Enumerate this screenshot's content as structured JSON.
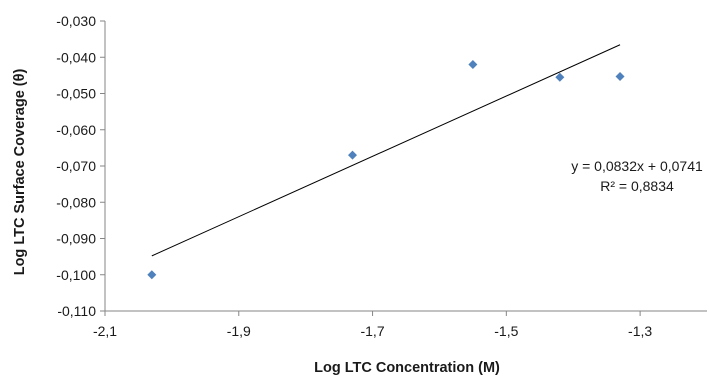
{
  "chart_data": {
    "type": "scatter",
    "title": "",
    "xlabel": "Log LTC Concentration (M)",
    "ylabel": "Log LTC Surface Coverage (θ)",
    "xlim": [
      -2.1,
      -1.2
    ],
    "ylim": [
      -0.11,
      -0.03
    ],
    "x_ticks": [
      -2.1,
      -1.9,
      -1.7,
      -1.5,
      -1.3
    ],
    "x_tick_labels": [
      "-2,1",
      "-1,9",
      "-1,7",
      "-1,5",
      "-1,3"
    ],
    "y_ticks": [
      -0.03,
      -0.04,
      -0.05,
      -0.06,
      -0.07,
      -0.08,
      -0.09,
      -0.1,
      -0.11
    ],
    "y_tick_labels": [
      "-0,030",
      "-0,040",
      "-0,050",
      "-0,060",
      "-0,070",
      "-0,080",
      "-0,090",
      "-0,100",
      "-0,110"
    ],
    "grid": false,
    "series": [
      {
        "marker": "diamond",
        "color": "#4f81bd",
        "points": [
          {
            "x": -2.03,
            "y": -0.1
          },
          {
            "x": -1.73,
            "y": -0.067
          },
          {
            "x": -1.55,
            "y": -0.042
          },
          {
            "x": -1.42,
            "y": -0.0455
          },
          {
            "x": -1.33,
            "y": -0.0453
          }
        ]
      }
    ],
    "trendline": {
      "type": "linear",
      "slope": 0.0832,
      "intercept": 0.0741,
      "x_range": [
        -2.03,
        -1.33
      ],
      "color": "#000000",
      "equation_text": "y = 0,0832x + 0,0741",
      "r2_text": "R² = 0,8834"
    }
  }
}
